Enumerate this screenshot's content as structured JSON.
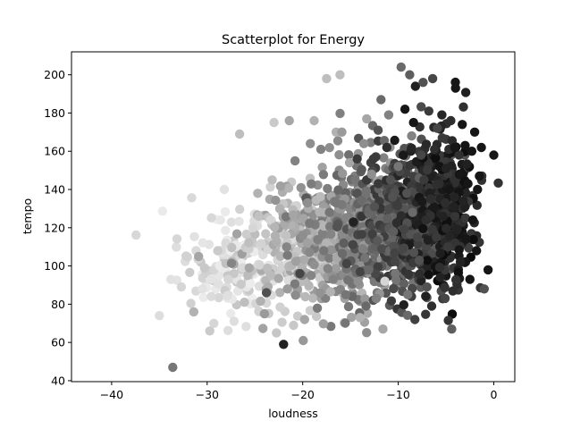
{
  "chart_data": {
    "type": "scatter",
    "title": "Scatterplot for Energy",
    "xlabel": "loudness",
    "ylabel": "tempo",
    "xlim": [
      -44.2,
      2.2
    ],
    "ylim": [
      39.5,
      212
    ],
    "xticks": [
      -40,
      -30,
      -20,
      -10,
      0
    ],
    "yticks": [
      40,
      60,
      80,
      100,
      120,
      140,
      160,
      180,
      200
    ],
    "xtick_labels": [
      "−40",
      "−30",
      "−20",
      "−10",
      "0"
    ],
    "ytick_labels": [
      "40",
      "60",
      "80",
      "100",
      "120",
      "140",
      "160",
      "180",
      "200"
    ],
    "grid": false,
    "colormap": "grayscale (higher energy = darker)",
    "points": [
      [
        -33.6,
        47,
        0.55
      ],
      [
        -35.0,
        74,
        0.12
      ],
      [
        -33.8,
        93,
        0.1
      ],
      [
        -32.7,
        89,
        0.15
      ],
      [
        -31.4,
        76,
        0.3
      ],
      [
        -30.9,
        105,
        0.35
      ],
      [
        -30.5,
        88,
        0.1
      ],
      [
        -29.3,
        70,
        0.15
      ],
      [
        -28.9,
        108,
        0.2
      ],
      [
        -28.2,
        140,
        0.1
      ],
      [
        -28.6,
        124,
        0.08
      ],
      [
        -27.8,
        93,
        0.15
      ],
      [
        -26.6,
        169,
        0.25
      ],
      [
        -26.1,
        81,
        0.25
      ],
      [
        -25.6,
        99,
        0.35
      ],
      [
        -25.2,
        120,
        0.15
      ],
      [
        -24.7,
        138,
        0.3
      ],
      [
        -24.0,
        75,
        0.4
      ],
      [
        -23.8,
        86,
        0.7
      ],
      [
        -23.2,
        145,
        0.25
      ],
      [
        -23.0,
        175,
        0.2
      ],
      [
        -22.4,
        130,
        0.3
      ],
      [
        -22.0,
        59,
        0.9
      ],
      [
        -21.6,
        88,
        0.4
      ],
      [
        -21.4,
        176,
        0.35
      ],
      [
        -20.8,
        155,
        0.5
      ],
      [
        -20.3,
        96,
        0.75
      ],
      [
        -20.0,
        116,
        0.45
      ],
      [
        -19.8,
        72,
        0.35
      ],
      [
        -19.5,
        133,
        0.45
      ],
      [
        -19.2,
        164,
        0.45
      ],
      [
        -18.8,
        176,
        0.3
      ],
      [
        -18.1,
        161,
        0.5
      ],
      [
        -17.8,
        108,
        0.55
      ],
      [
        -17.5,
        198,
        0.25
      ],
      [
        -17.2,
        128,
        0.55
      ],
      [
        -16.8,
        93,
        0.5
      ],
      [
        -16.5,
        170,
        0.3
      ],
      [
        -16.1,
        200,
        0.25
      ],
      [
        -15.9,
        170,
        0.4
      ],
      [
        -15.7,
        112,
        0.65
      ],
      [
        -15.5,
        85,
        0.55
      ],
      [
        -15.1,
        154,
        0.35
      ],
      [
        -14.7,
        123,
        0.9
      ],
      [
        -14.3,
        156,
        0.8
      ],
      [
        -14.0,
        73,
        0.3
      ],
      [
        -13.6,
        164,
        0.45
      ],
      [
        -13.3,
        177,
        0.35
      ],
      [
        -13.1,
        98,
        0.6
      ],
      [
        -12.8,
        148,
        0.45
      ],
      [
        -12.5,
        131,
        0.7
      ],
      [
        -12.3,
        83,
        0.5
      ],
      [
        -12.1,
        171,
        0.7
      ],
      [
        -11.8,
        187,
        0.6
      ],
      [
        -11.6,
        67,
        0.35
      ],
      [
        -11.4,
        92,
        0.15
      ],
      [
        -11.2,
        162,
        0.85
      ],
      [
        -11.0,
        179,
        0.5
      ],
      [
        -10.8,
        145,
        0.7
      ],
      [
        -10.6,
        136,
        0.7
      ],
      [
        -10.5,
        118,
        0.65
      ],
      [
        -10.3,
        96,
        0.55
      ],
      [
        -10.0,
        152,
        0.55
      ],
      [
        -9.7,
        204,
        0.6
      ],
      [
        -9.5,
        109,
        0.75
      ],
      [
        -9.3,
        182,
        0.95
      ],
      [
        -9.1,
        138,
        0.7
      ],
      [
        -9.0,
        85,
        0.55
      ],
      [
        -8.8,
        200,
        0.65
      ],
      [
        -8.6,
        168,
        0.5
      ],
      [
        -8.5,
        128,
        0.6
      ],
      [
        -8.4,
        175,
        0.95
      ],
      [
        -8.2,
        194,
        0.9
      ],
      [
        -8.0,
        115,
        0.75
      ],
      [
        -7.8,
        103,
        0.7
      ],
      [
        -7.6,
        158,
        0.75
      ],
      [
        -7.4,
        196,
        0.7
      ],
      [
        -7.3,
        145,
        0.8
      ],
      [
        -7.1,
        124,
        0.85
      ],
      [
        -7.0,
        89,
        0.7
      ],
      [
        -6.8,
        181,
        0.8
      ],
      [
        -6.6,
        135,
        0.85
      ],
      [
        -6.5,
        79,
        0.85
      ],
      [
        -6.4,
        198,
        0.75
      ],
      [
        -6.2,
        161,
        0.85
      ],
      [
        -6.0,
        115,
        0.8
      ],
      [
        -5.9,
        172,
        0.75
      ],
      [
        -5.7,
        143,
        0.85
      ],
      [
        -5.6,
        94,
        0.9
      ],
      [
        -5.4,
        167,
        0.8
      ],
      [
        -5.3,
        126,
        0.9
      ],
      [
        -5.1,
        83,
        0.75
      ],
      [
        -5.0,
        151,
        0.9
      ],
      [
        -4.8,
        110,
        0.8
      ],
      [
        -4.7,
        140,
        0.95
      ],
      [
        -4.5,
        176,
        0.85
      ],
      [
        -4.4,
        67,
        0.65
      ],
      [
        -4.2,
        131,
        0.9
      ],
      [
        -4.1,
        162,
        0.95
      ],
      [
        -4.0,
        193,
        0.95
      ],
      [
        -3.8,
        119,
        0.9
      ],
      [
        -3.6,
        148,
        0.95
      ],
      [
        -3.5,
        102,
        0.9
      ],
      [
        -3.3,
        174,
        0.95
      ],
      [
        -3.2,
        134,
        0.9
      ],
      [
        -3.0,
        163,
        0.95
      ],
      [
        -2.9,
        114,
        0.95
      ],
      [
        -2.7,
        143,
        0.95
      ],
      [
        -2.5,
        93,
        0.95
      ],
      [
        -2.3,
        160,
        0.95
      ],
      [
        -2.2,
        124,
        0.95
      ],
      [
        -2.0,
        170,
        0.95
      ],
      [
        -1.8,
        108,
        0.95
      ],
      [
        -1.7,
        140,
        0.95
      ],
      [
        -1.5,
        147,
        0.95
      ],
      [
        -1.3,
        162,
        0.95
      ],
      [
        -1.0,
        88,
        0.7
      ],
      [
        -0.6,
        98,
        0.95
      ],
      [
        0.0,
        158,
        0.95
      ]
    ],
    "cloud": [
      {
        "cx": -27,
        "cy": 100,
        "sx": 3.0,
        "sy": 14,
        "n": 160,
        "e": [
          0.05,
          0.22
        ]
      },
      {
        "cx": -21,
        "cy": 110,
        "sx": 3.0,
        "sy": 15,
        "n": 240,
        "e": [
          0.12,
          0.4
        ]
      },
      {
        "cx": -17,
        "cy": 115,
        "sx": 2.6,
        "sy": 16,
        "n": 260,
        "e": [
          0.25,
          0.55
        ]
      },
      {
        "cx": -13,
        "cy": 120,
        "sx": 2.0,
        "sy": 17,
        "n": 300,
        "e": [
          0.4,
          0.7
        ]
      },
      {
        "cx": -10,
        "cy": 122,
        "sx": 1.8,
        "sy": 18,
        "n": 340,
        "e": [
          0.55,
          0.82
        ]
      },
      {
        "cx": -7,
        "cy": 125,
        "sx": 1.6,
        "sy": 19,
        "n": 340,
        "e": [
          0.65,
          0.95
        ]
      },
      {
        "cx": -4.5,
        "cy": 128,
        "sx": 1.3,
        "sy": 19,
        "n": 260,
        "e": [
          0.8,
          1.0
        ]
      }
    ]
  }
}
